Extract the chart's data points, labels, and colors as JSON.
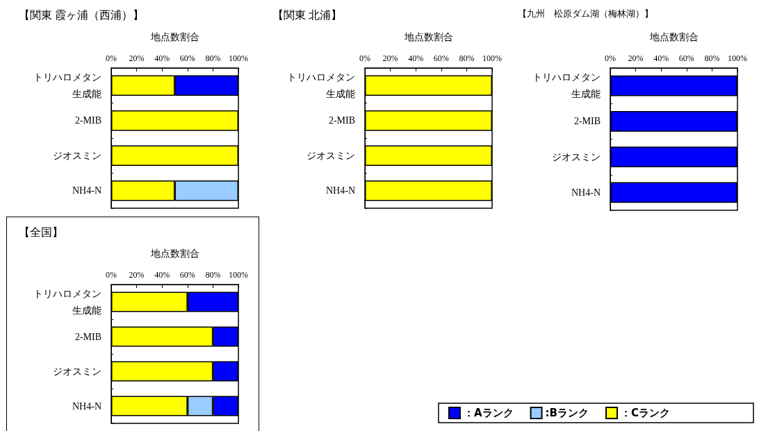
{
  "chart_data": [
    {
      "type": "bar",
      "orientation": "horizontal",
      "stacked": true,
      "title": "【関東 霞ヶ浦（西浦）】",
      "xlabel": "地点数割合",
      "categories": [
        "トリハロメタン生成能",
        "2-MIB",
        "ジオスミン",
        "NH4-N"
      ],
      "xlim": [
        0,
        100
      ],
      "xticks": [
        {
          "value": 0,
          "label": "0%"
        },
        {
          "value": 20,
          "label": "20%"
        },
        {
          "value": 40,
          "label": "40%"
        },
        {
          "value": 60,
          "label": "60%"
        },
        {
          "value": 80,
          "label": "80%"
        },
        {
          "value": 100,
          "label": "100%"
        }
      ],
      "grid": false,
      "legend": false,
      "series": [
        {
          "color": "#ffff00",
          "values": [
            50,
            100,
            100,
            50
          ]
        },
        {
          "color": "#99ccff",
          "values": [
            null,
            null,
            null,
            50
          ]
        },
        {
          "color": "#0000ff",
          "values": [
            50,
            null,
            null,
            null
          ]
        }
      ]
    },
    {
      "type": "bar",
      "orientation": "horizontal",
      "stacked": true,
      "title": "【関東 北浦】",
      "xlabel": "地点数割合",
      "categories": [
        "トリハロメタン生成能",
        "2-MIB",
        "ジオスミン",
        "NH4-N"
      ],
      "xlim": [
        0,
        100
      ],
      "xticks": [
        {
          "value": 0,
          "label": "0%"
        },
        {
          "value": 20,
          "label": "20%"
        },
        {
          "value": 40,
          "label": "40%"
        },
        {
          "value": 60,
          "label": "60%"
        },
        {
          "value": 80,
          "label": "80%"
        },
        {
          "value": 100,
          "label": "100%"
        }
      ],
      "grid": false,
      "legend": false,
      "series": [
        {
          "color": "#ffff00",
          "values": [
            100,
            100,
            100,
            100
          ]
        }
      ]
    },
    {
      "type": "bar",
      "orientation": "horizontal",
      "stacked": true,
      "title": "【九州　松原ダム湖（梅林湖）】",
      "xlabel": "地点数割合",
      "categories": [
        "トリハロメタン生成能",
        "2-MIB",
        "ジオスミン",
        "NH4-N"
      ],
      "xlim": [
        0,
        100
      ],
      "xticks": [
        {
          "value": 0,
          "label": "0%"
        },
        {
          "value": 20,
          "label": "20%"
        },
        {
          "value": 40,
          "label": "40%"
        },
        {
          "value": 60,
          "label": "60%"
        },
        {
          "value": 80,
          "label": "80%"
        },
        {
          "value": 100,
          "label": "100%"
        }
      ],
      "grid": false,
      "legend": false,
      "series": [
        {
          "color": "#0000ff",
          "values": [
            100,
            100,
            100,
            100
          ]
        }
      ]
    },
    {
      "type": "bar",
      "orientation": "horizontal",
      "stacked": true,
      "title": "【全国】",
      "xlabel": "地点数割合",
      "categories": [
        "トリハロメタン生成能",
        "2-MIB",
        "ジオスミン",
        "NH4-N"
      ],
      "xlim": [
        0,
        100
      ],
      "xticks": [
        {
          "value": 0,
          "label": "0%"
        },
        {
          "value": 20,
          "label": "20%"
        },
        {
          "value": 40,
          "label": "40%"
        },
        {
          "value": 60,
          "label": "60%"
        },
        {
          "value": 80,
          "label": "80%"
        },
        {
          "value": 100,
          "label": "100%"
        }
      ],
      "grid": false,
      "legend": "bottom right",
      "series": [
        {
          "name": "：Cランク",
          "color": "#ffff00",
          "values": [
            60,
            80,
            80,
            60
          ]
        },
        {
          "name": ":Bランク",
          "color": "#99ccff",
          "values": [
            null,
            null,
            null,
            20
          ]
        },
        {
          "name": "：Aランク",
          "color": "#0000ff",
          "values": [
            40,
            20,
            20,
            20
          ]
        }
      ]
    }
  ]
}
